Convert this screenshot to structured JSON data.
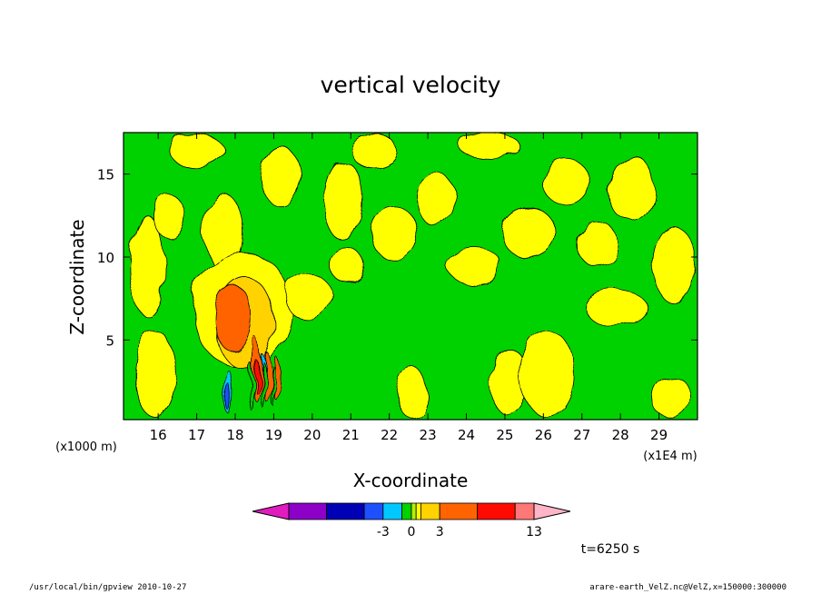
{
  "footer": {
    "left": "/usr/local/bin/gpview   2010-10-27",
    "right": "arare-earth_VelZ.nc@VelZ,x=150000:300000"
  },
  "colors": {
    "magenta": "#e01cbf",
    "purple": "#8c00c8",
    "navy": "#0000b4",
    "blue": "#1e50ff",
    "cyan": "#00c8ff",
    "green": "#00d200",
    "yellowgreen": "#b4f000",
    "yellow": "#ffff00",
    "gold": "#ffd200",
    "orange": "#ff6400",
    "red": "#ff0a00",
    "salmon": "#ff7878",
    "pink": "#ffb4c8"
  },
  "chart_data": {
    "type": "heatmap",
    "title": "vertical velocity",
    "xlabel": "X-coordinate",
    "ylabel": "Z-coordinate",
    "x_unit": "(x1E4 m)",
    "y_unit": "(x1000 m)",
    "xlim": [
      15.1,
      30.0
    ],
    "ylim": [
      0.2,
      17.5
    ],
    "x_ticks": [
      16,
      17,
      18,
      19,
      20,
      21,
      22,
      23,
      24,
      25,
      26,
      27,
      28,
      29
    ],
    "y_ticks": [
      5,
      10,
      15
    ],
    "time_label": "t=6250 s",
    "colorbar": {
      "levels": [
        -13,
        -9,
        -5,
        -3,
        -1,
        0,
        0.5,
        1,
        3,
        7,
        11,
        13
      ],
      "colors": [
        "magenta",
        "purple",
        "navy",
        "blue",
        "cyan",
        "green",
        "yellowgreen",
        "yellow",
        "gold",
        "orange",
        "red",
        "salmon",
        "pink"
      ],
      "tick_labels": [
        "-3",
        "0",
        "3",
        "13"
      ]
    },
    "regions": [
      {
        "level": "yellow",
        "x": 15.9,
        "y": 3.0,
        "rx": 0.55,
        "ry": 2.6
      },
      {
        "level": "yellow",
        "x": 15.7,
        "y": 9.5,
        "rx": 0.45,
        "ry": 3.0
      },
      {
        "level": "yellow",
        "x": 16.3,
        "y": 12.4,
        "rx": 0.4,
        "ry": 1.3
      },
      {
        "level": "yellow",
        "x": 17.0,
        "y": 16.4,
        "rx": 0.7,
        "ry": 1.0
      },
      {
        "level": "yellow",
        "x": 17.7,
        "y": 11.5,
        "rx": 0.5,
        "ry": 2.3
      },
      {
        "level": "yellow",
        "x": 18.2,
        "y": 6.8,
        "rx": 1.3,
        "ry": 3.5
      },
      {
        "level": "yellow",
        "x": 19.2,
        "y": 14.8,
        "rx": 0.5,
        "ry": 1.8
      },
      {
        "level": "yellow",
        "x": 19.9,
        "y": 7.6,
        "rx": 0.6,
        "ry": 1.4
      },
      {
        "level": "yellow",
        "x": 20.8,
        "y": 13.4,
        "rx": 0.5,
        "ry": 2.4
      },
      {
        "level": "yellow",
        "x": 20.9,
        "y": 9.5,
        "rx": 0.45,
        "ry": 1.0
      },
      {
        "level": "yellow",
        "x": 21.6,
        "y": 16.4,
        "rx": 0.6,
        "ry": 1.0
      },
      {
        "level": "yellow",
        "x": 22.1,
        "y": 11.5,
        "rx": 0.6,
        "ry": 1.6
      },
      {
        "level": "yellow",
        "x": 22.6,
        "y": 1.8,
        "rx": 0.4,
        "ry": 1.5
      },
      {
        "level": "yellow",
        "x": 23.2,
        "y": 13.5,
        "rx": 0.5,
        "ry": 1.6
      },
      {
        "level": "yellow",
        "x": 24.2,
        "y": 9.5,
        "rx": 0.7,
        "ry": 1.1
      },
      {
        "level": "yellow",
        "x": 24.6,
        "y": 16.7,
        "rx": 0.8,
        "ry": 0.7
      },
      {
        "level": "yellow",
        "x": 25.1,
        "y": 2.5,
        "rx": 0.5,
        "ry": 2.0
      },
      {
        "level": "yellow",
        "x": 25.6,
        "y": 11.5,
        "rx": 0.7,
        "ry": 1.5
      },
      {
        "level": "yellow",
        "x": 26.1,
        "y": 3.0,
        "rx": 0.7,
        "ry": 2.6
      },
      {
        "level": "yellow",
        "x": 26.6,
        "y": 14.5,
        "rx": 0.6,
        "ry": 1.4
      },
      {
        "level": "yellow",
        "x": 27.4,
        "y": 10.8,
        "rx": 0.55,
        "ry": 1.3
      },
      {
        "level": "yellow",
        "x": 27.9,
        "y": 6.9,
        "rx": 0.8,
        "ry": 1.1
      },
      {
        "level": "yellow",
        "x": 28.3,
        "y": 14.1,
        "rx": 0.6,
        "ry": 2.0
      },
      {
        "level": "yellow",
        "x": 29.3,
        "y": 1.6,
        "rx": 0.5,
        "ry": 1.3
      },
      {
        "level": "yellow",
        "x": 29.4,
        "y": 9.5,
        "rx": 0.55,
        "ry": 2.3
      },
      {
        "level": "gold",
        "x": 18.25,
        "y": 6.0,
        "rx": 0.75,
        "ry": 2.8
      },
      {
        "level": "orange",
        "x": 17.95,
        "y": 6.3,
        "rx": 0.48,
        "ry": 2.0
      },
      {
        "level": "orange",
        "x": 18.55,
        "y": 3.2,
        "rx": 0.12,
        "ry": 1.9
      },
      {
        "level": "orange",
        "x": 18.85,
        "y": 2.7,
        "rx": 0.1,
        "ry": 1.5
      },
      {
        "level": "orange",
        "x": 19.1,
        "y": 2.6,
        "rx": 0.08,
        "ry": 1.3
      },
      {
        "level": "red",
        "x": 18.55,
        "y": 2.8,
        "rx": 0.06,
        "ry": 1.0
      },
      {
        "level": "cyan",
        "x": 17.85,
        "y": 1.8,
        "rx": 0.1,
        "ry": 1.3
      },
      {
        "level": "blue",
        "x": 17.85,
        "y": 1.5,
        "rx": 0.05,
        "ry": 0.8
      },
      {
        "level": "cyan",
        "x": 18.72,
        "y": 3.5,
        "rx": 0.06,
        "ry": 0.6
      },
      {
        "level": "green",
        "x": 18.4,
        "y": 2.2,
        "rx": 0.05,
        "ry": 1.4
      },
      {
        "level": "green",
        "x": 18.72,
        "y": 2.3,
        "rx": 0.05,
        "ry": 1.4
      },
      {
        "level": "green",
        "x": 19.0,
        "y": 2.2,
        "rx": 0.04,
        "ry": 1.2
      }
    ]
  }
}
